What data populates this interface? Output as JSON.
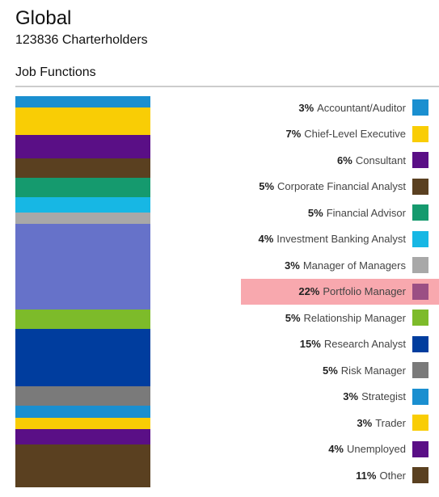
{
  "header": {
    "title": "Global",
    "subtitle": "123836 Charterholders",
    "section": "Job Functions"
  },
  "chart_data": {
    "type": "bar",
    "stacked": true,
    "highlighted": "Portfolio Manager",
    "highlight_color": "#f8a8ae",
    "unit_suffix": "%",
    "categories": [
      "Accountant/Auditor",
      "Chief-Level Executive",
      "Consultant",
      "Corporate Financial Analyst",
      "Financial Advisor",
      "Investment Banking Analyst",
      "Manager of Managers",
      "Portfolio Manager",
      "Relationship Manager",
      "Research Analyst",
      "Risk Manager",
      "Strategist",
      "Trader",
      "Unemployed",
      "Other"
    ],
    "values": [
      3,
      7,
      6,
      5,
      5,
      4,
      3,
      22,
      5,
      15,
      5,
      3,
      3,
      4,
      11
    ],
    "bar_colors": [
      "#1a8fd0",
      "#f9cd05",
      "#5a0f86",
      "#5a4020",
      "#159a6e",
      "#17b7e4",
      "#a8a8a8",
      "#6672c9",
      "#7dbb2a",
      "#003d9e",
      "#7a7a7a",
      "#1a8fd0",
      "#f9cd05",
      "#5a0f86",
      "#5a4020"
    ],
    "legend_colors": [
      "#1a8fd0",
      "#f9cd05",
      "#5a0f86",
      "#5a4020",
      "#159a6e",
      "#17b7e4",
      "#a8a8a8",
      "#9b4f84",
      "#7dbb2a",
      "#003d9e",
      "#7a7a7a",
      "#1a8fd0",
      "#f9cd05",
      "#5a0f86",
      "#5a4020"
    ]
  }
}
